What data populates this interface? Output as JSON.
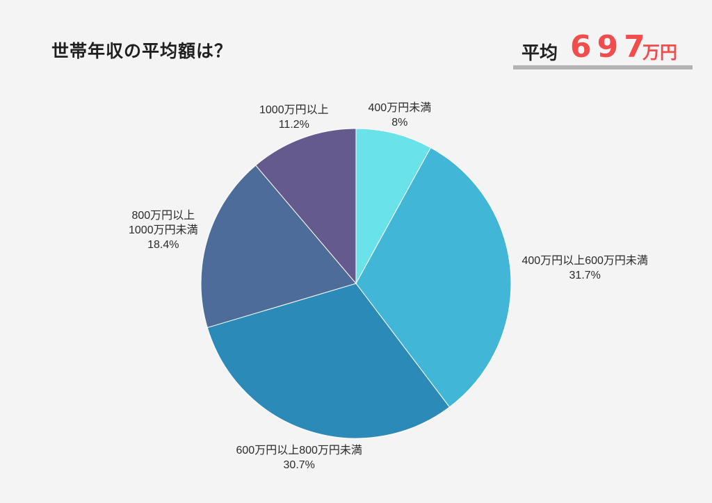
{
  "title": "世帯年収の平均額は？",
  "average": {
    "label": "平均",
    "value": "697",
    "unit": "万円",
    "value_color": "#f24d4d"
  },
  "chart_data": {
    "type": "pie",
    "start": "12 o'clock",
    "direction": "clockwise",
    "slices": [
      {
        "lines": [
          "400万円未満"
        ],
        "percent_label": "8%",
        "value": 8.0,
        "color": "#69e2ea"
      },
      {
        "lines": [
          "400万円以上600万円未満"
        ],
        "percent_label": "31.7%",
        "value": 31.7,
        "color": "#42b6d6"
      },
      {
        "lines": [
          "600万円以上800万円未満"
        ],
        "percent_label": "30.7%",
        "value": 30.7,
        "color": "#2c8ab9"
      },
      {
        "lines": [
          "800万円以上",
          "1000万円未満"
        ],
        "percent_label": "18.4%",
        "value": 18.4,
        "color": "#4d6c99"
      },
      {
        "lines": [
          "1000万円以上"
        ],
        "percent_label": "11.2%",
        "value": 11.2,
        "color": "#645a8e"
      }
    ]
  }
}
